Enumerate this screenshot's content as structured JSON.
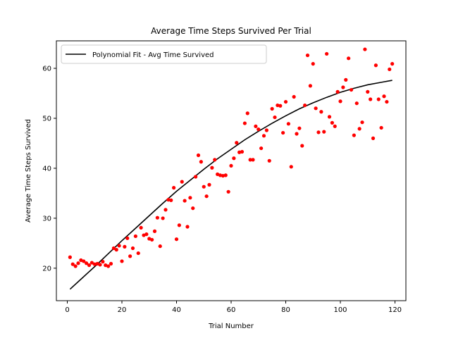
{
  "chart_data": {
    "type": "scatter",
    "title": "Average Time Steps Survived Per Trial",
    "xlabel": "Trial Number",
    "ylabel": "Average Time Steps Survived",
    "xlim": [
      -4,
      124
    ],
    "ylim": [
      13.5,
      65.5
    ],
    "xticks": [
      0,
      20,
      40,
      60,
      80,
      100,
      120
    ],
    "yticks": [
      20,
      30,
      40,
      50,
      60
    ],
    "grid": false,
    "legend_position": "top-left",
    "colors": {
      "points": "#ff0000",
      "fit": "#000000"
    },
    "series": [
      {
        "kind": "points",
        "x": [
          1,
          2,
          3,
          4,
          5,
          6,
          7,
          8,
          9,
          10,
          11,
          12,
          13,
          14,
          15,
          16,
          17,
          18,
          19,
          20,
          21,
          22,
          23,
          24,
          25,
          26,
          27,
          28,
          29,
          30,
          31,
          32,
          33,
          34,
          35,
          36,
          37,
          38,
          39,
          40,
          41,
          42,
          43,
          44,
          45,
          46,
          47,
          48,
          49,
          50,
          51,
          52,
          53,
          54,
          55,
          56,
          57,
          58,
          59,
          60,
          61,
          62,
          63,
          64,
          65,
          66,
          67,
          68,
          69,
          70,
          71,
          72,
          73,
          74,
          75,
          76,
          77,
          78,
          79,
          80,
          81,
          82,
          83,
          84,
          85,
          86,
          87,
          88,
          89,
          90,
          91,
          92,
          93,
          94,
          95,
          96,
          97,
          98,
          99,
          100,
          101,
          102,
          103,
          104,
          105,
          106,
          107,
          108,
          109,
          110,
          111,
          112,
          113,
          114,
          115,
          116,
          117,
          118,
          119
        ],
        "y": [
          22.2,
          20.8,
          20.4,
          21.0,
          21.6,
          21.4,
          21.0,
          20.6,
          21.1,
          20.8,
          20.9,
          20.7,
          21.3,
          20.6,
          20.4,
          20.9,
          24.0,
          23.7,
          24.5,
          21.4,
          24.3,
          26.0,
          22.4,
          24.0,
          26.4,
          23.0,
          28.1,
          26.6,
          26.8,
          25.9,
          25.7,
          27.4,
          30.1,
          24.4,
          30.0,
          31.7,
          33.7,
          33.6,
          36.1,
          25.8,
          28.6,
          37.3,
          33.5,
          28.3,
          34.1,
          32.0,
          38.3,
          42.6,
          41.3,
          36.3,
          34.4,
          36.7,
          40.1,
          41.7,
          38.8,
          38.6,
          38.5,
          38.6,
          35.3,
          40.5,
          42.0,
          45.1,
          43.2,
          43.3,
          49.0,
          51.0,
          41.7,
          41.7,
          48.4,
          47.8,
          44.0,
          46.5,
          47.6,
          41.5,
          51.9,
          50.2,
          52.6,
          52.5,
          47.1,
          53.3,
          48.9,
          40.3,
          54.3,
          46.9,
          48.0,
          44.5,
          52.6,
          62.6,
          56.5,
          60.9,
          52.0,
          47.2,
          51.3,
          47.3,
          62.9,
          50.3,
          49.1,
          48.4,
          55.3,
          53.4,
          56.2,
          57.7,
          62.0,
          55.7,
          46.6,
          53.0,
          47.9,
          49.2,
          63.8,
          55.3,
          53.8,
          46.0,
          60.6,
          53.8,
          48.1,
          54.4,
          53.3,
          59.8,
          60.9
        ]
      },
      {
        "kind": "fit",
        "name": "Polynomial Fit - Avg Time Survived",
        "x": [
          1,
          5,
          10,
          15,
          20,
          25,
          30,
          35,
          40,
          45,
          50,
          55,
          60,
          65,
          70,
          75,
          80,
          85,
          90,
          95,
          100,
          105,
          110,
          115,
          119
        ],
        "y": [
          15.8,
          17.8,
          20.3,
          22.9,
          25.5,
          28.0,
          30.5,
          33.0,
          35.4,
          37.6,
          39.8,
          41.9,
          43.8,
          45.7,
          47.4,
          49.0,
          50.5,
          51.9,
          53.1,
          54.2,
          55.2,
          56.0,
          56.7,
          57.2,
          57.6
        ]
      }
    ]
  }
}
